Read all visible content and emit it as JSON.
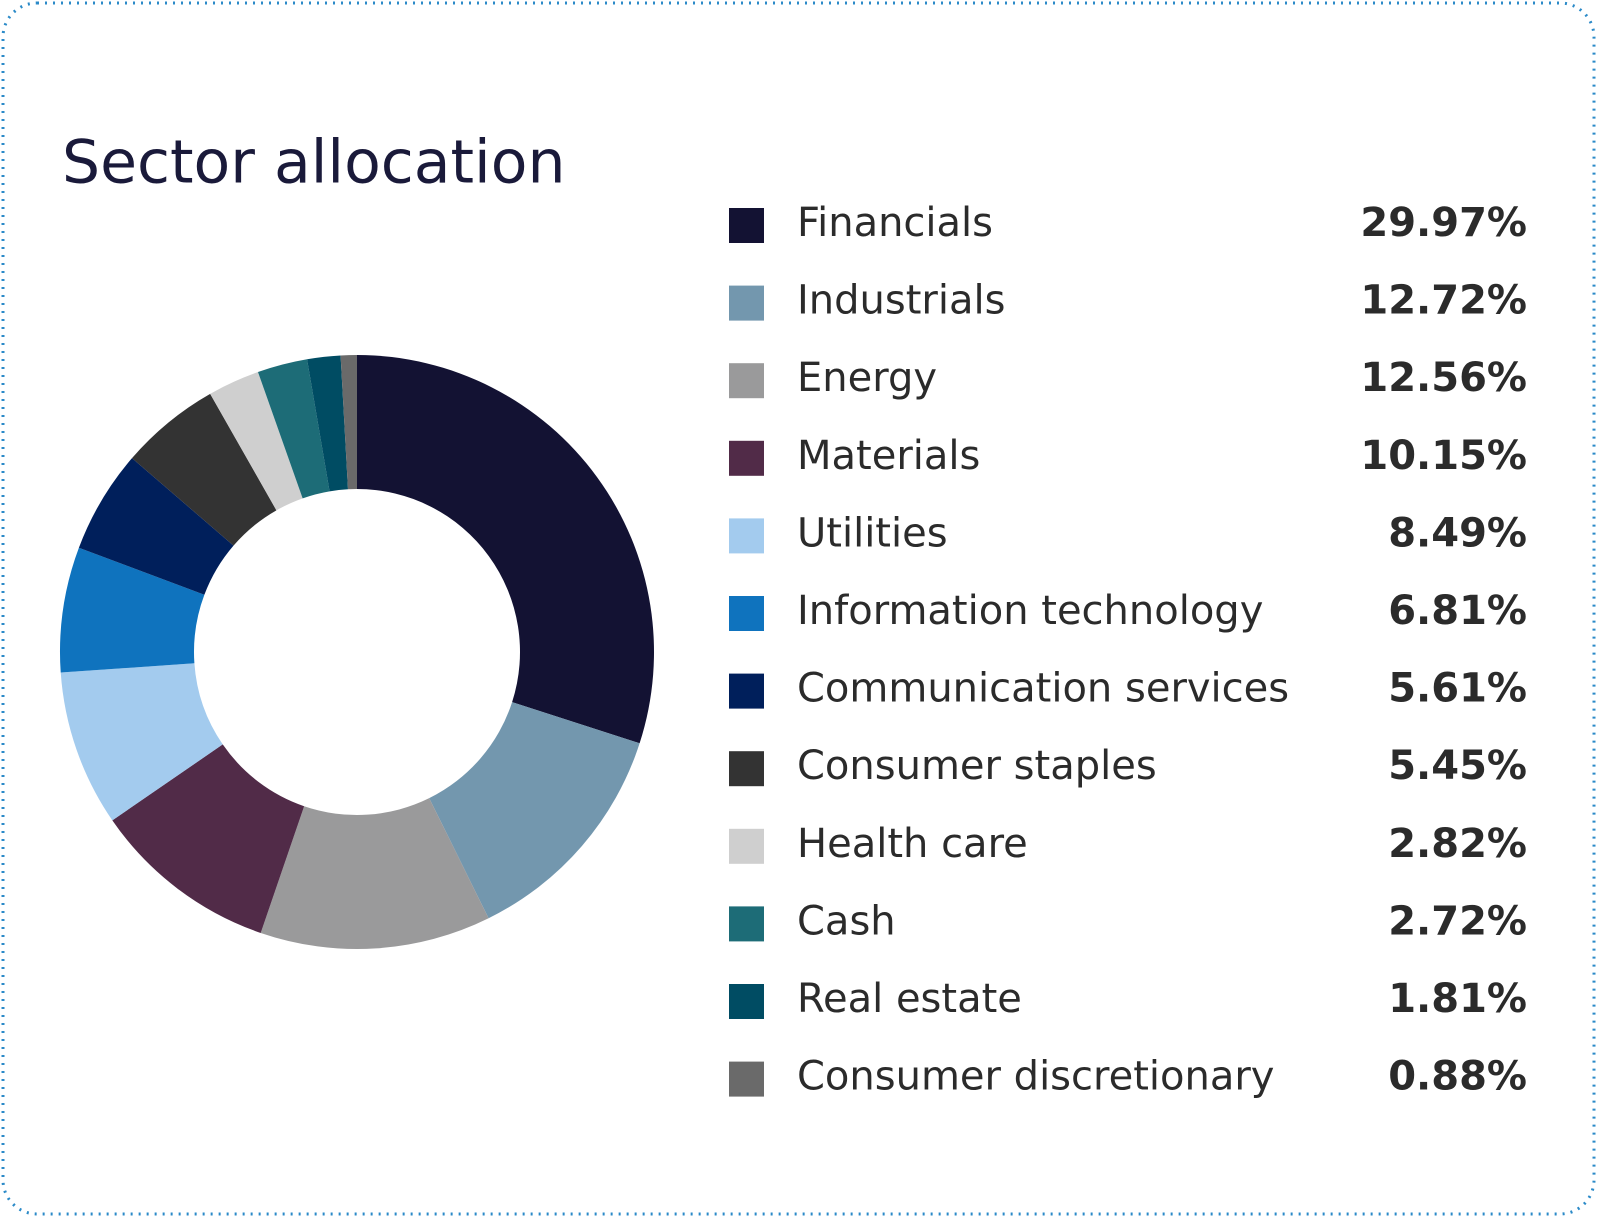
{
  "chart_data": {
    "type": "donut",
    "title": "Sector allocation",
    "categories": [
      "Financials",
      "Industrials",
      "Energy",
      "Materials",
      "Utilities",
      "Information technology",
      "Communication services",
      "Consumer staples",
      "Health care",
      "Cash",
      "Real estate",
      "Consumer discretionary"
    ],
    "values": [
      29.97,
      12.72,
      12.56,
      10.15,
      8.49,
      6.81,
      5.61,
      5.45,
      2.82,
      2.72,
      1.81,
      0.88
    ],
    "value_labels": [
      "29.97%",
      "12.72%",
      "12.56%",
      "10.15%",
      "8.49%",
      "6.81%",
      "5.61%",
      "5.45%",
      "2.82%",
      "2.72%",
      "1.81%",
      "0.88%"
    ],
    "colors": [
      "#131233",
      "#7397ae",
      "#9a9a9b",
      "#512b48",
      "#a3cbee",
      "#0f73be",
      "#001f5b",
      "#333333",
      "#cfcfcf",
      "#1d6c77",
      "#004c63",
      "#6a6a6a"
    ]
  }
}
